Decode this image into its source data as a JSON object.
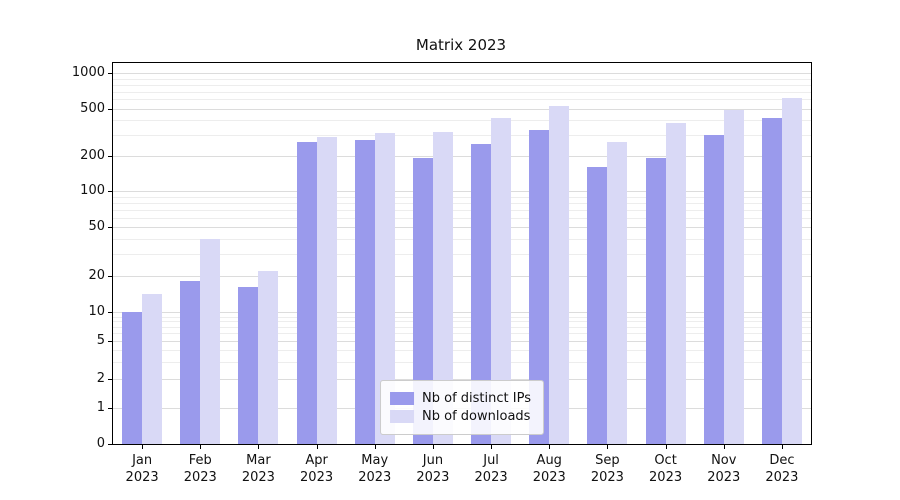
{
  "chart_data": {
    "type": "bar",
    "title": "Matrix 2023",
    "categories": [
      "Jan",
      "Feb",
      "Mar",
      "Apr",
      "May",
      "Jun",
      "Jul",
      "Aug",
      "Sep",
      "Oct",
      "Nov",
      "Dec"
    ],
    "year_label": "2023",
    "series": [
      {
        "name": "Nb of distinct IPs",
        "color": "#9a9aec",
        "values": [
          10,
          18,
          16,
          260,
          270,
          190,
          250,
          330,
          160,
          190,
          300,
          420
        ]
      },
      {
        "name": "Nb of downloads",
        "color": "#d9d9f6",
        "values": [
          14,
          40,
          22,
          290,
          310,
          320,
          420,
          530,
          260,
          380,
          490,
          620
        ]
      }
    ],
    "yscale": "symlog",
    "yticks": [
      0,
      1,
      2,
      5,
      10,
      20,
      50,
      100,
      200,
      500,
      1000
    ],
    "ylim": [
      0,
      1200
    ],
    "grid": true,
    "legend_position": "lower center"
  }
}
